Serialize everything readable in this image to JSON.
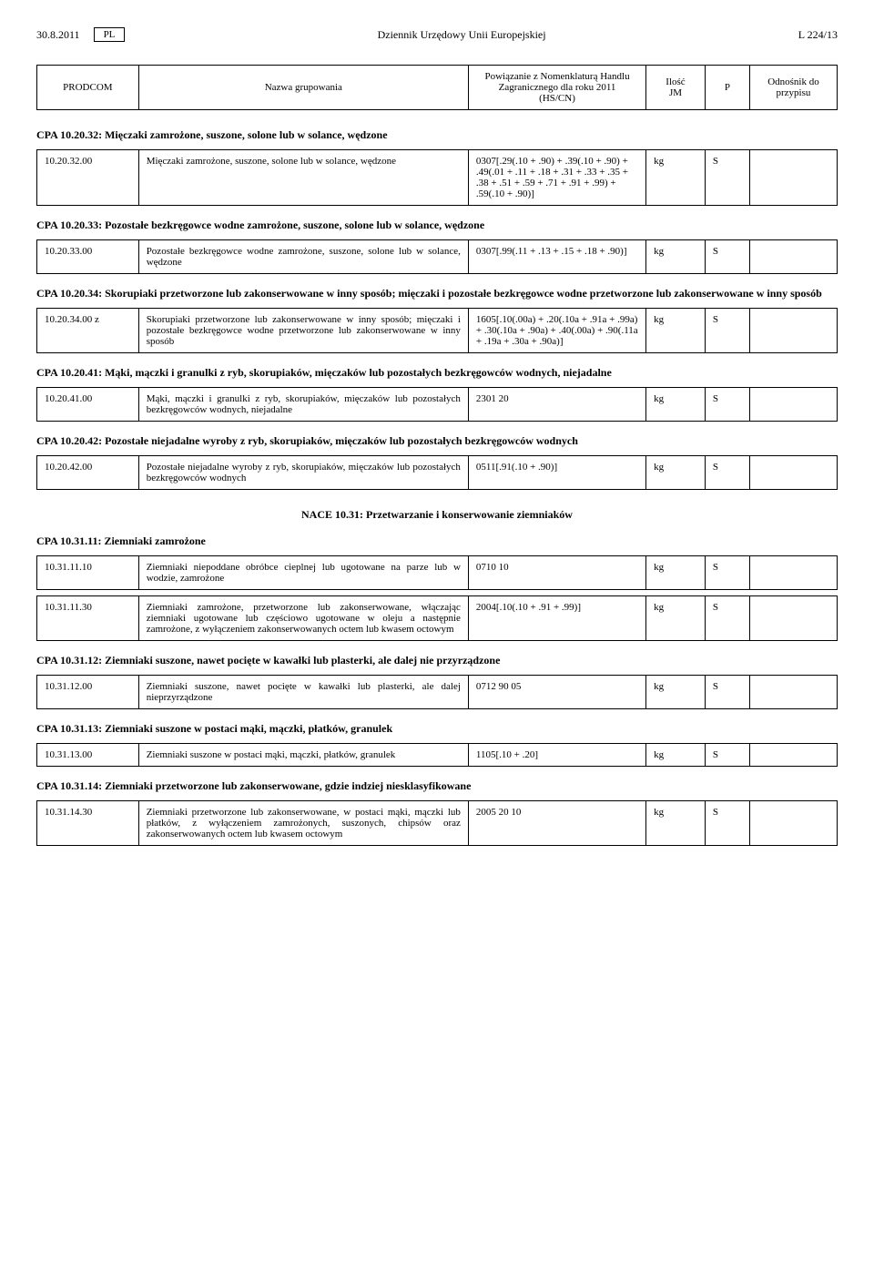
{
  "header": {
    "date": "30.8.2011",
    "lang": "PL",
    "journal": "Dziennik Urzędowy Unii Europejskiej",
    "page": "L 224/13"
  },
  "columns": {
    "prodcom": "PRODCOM",
    "name": "Nazwa grupowania",
    "hs": "Powiązanie z Nomenklaturą Handlu Zagranicznego dla roku 2011\n(HS/CN)",
    "jm": "Ilość\nJM",
    "p": "P",
    "ref": "Odnośnik do przypisu"
  },
  "sections": [
    {
      "cpa": "CPA 10.20.32: Mięczaki zamrożone, suszone, solone lub w solance, wędzone",
      "rows": [
        {
          "code": "10.20.32.00",
          "name": "Mięczaki zamrożone, suszone, solone lub w solance, wędzone",
          "hs": "0307[.29(.10 + .90) + .39(.10 + .90) + .49(.01 + .11 + .18 + .31 + .33 + .35 + .38 + .51 + .59 + .71 + .91 + .99) + .59(.10 + .90)]",
          "jm": "kg",
          "p": "S",
          "ref": ""
        }
      ]
    },
    {
      "cpa": "CPA 10.20.33: Pozostałe bezkręgowce wodne zamrożone, suszone, solone lub w solance, wędzone",
      "rows": [
        {
          "code": "10.20.33.00",
          "name": "Pozostałe bezkręgowce wodne zamrożone, suszone, solone lub w solance, wędzone",
          "hs": "0307[.99(.11 + .13 + .15 + .18 + .90)]",
          "jm": "kg",
          "p": "S",
          "ref": ""
        }
      ]
    },
    {
      "cpa": "CPA 10.20.34: Skorupiaki przetworzone lub zakonserwowane w inny sposób; mięczaki i pozostałe bezkręgowce wodne przetworzone lub zakonserwowane w inny sposób",
      "rows": [
        {
          "code": "10.20.34.00 z",
          "name": "Skorupiaki przetworzone lub zakonserwowane w inny sposób; mięczaki i pozostałe bezkręgowce wodne przetworzone lub zakonserwowane w inny sposób",
          "hs": "1605[.10(.00a) + .20(.10a + .91a + .99a) + .30(.10a + .90a) + .40(.00a) + .90(.11a + .19a + .30a + .90a)]",
          "jm": "kg",
          "p": "S",
          "ref": ""
        }
      ]
    },
    {
      "cpa": "CPA 10.20.41: Mąki, mączki i granulki z ryb, skorupiaków, mięczaków lub pozostałych bezkręgowców wodnych, niejadalne",
      "rows": [
        {
          "code": "10.20.41.00",
          "name": "Mąki, mączki i granulki z ryb, skorupiaków, mięczaków lub pozostałych bezkręgowców wodnych, niejadalne",
          "hs": "2301 20",
          "jm": "kg",
          "p": "S",
          "ref": ""
        }
      ]
    },
    {
      "cpa": "CPA 10.20.42: Pozostałe niejadalne wyroby z ryb, skorupiaków, mięczaków lub pozostałych bezkręgowców wodnych",
      "rows": [
        {
          "code": "10.20.42.00",
          "name": "Pozostałe niejadalne wyroby z ryb, skorupiaków, mięczaków lub pozostałych bezkręgowców wodnych",
          "hs": "0511[.91(.10 + .90)]",
          "jm": "kg",
          "p": "S",
          "ref": ""
        }
      ]
    }
  ],
  "nace": "NACE 10.31: Przetwarzanie i konserwowanie ziemniaków",
  "sections2": [
    {
      "cpa": "CPA 10.31.11: Ziemniaki zamrożone",
      "rows": [
        {
          "code": "10.31.11.10",
          "name": "Ziemniaki niepoddane obróbce cieplnej lub ugotowane na parze lub w wodzie, zamrożone",
          "hs": "0710 10",
          "jm": "kg",
          "p": "S",
          "ref": ""
        },
        {
          "code": "10.31.11.30",
          "name": "Ziemniaki zamrożone, przetworzone lub zakonserwowane, włączając ziemniaki ugotowane lub częściowo ugotowane w oleju a następnie zamrożone, z wyłączeniem zakonserwowanych octem lub kwasem octowym",
          "hs": "2004[.10(.10 + .91 + .99)]",
          "jm": "kg",
          "p": "S",
          "ref": ""
        }
      ]
    },
    {
      "cpa": "CPA 10.31.12: Ziemniaki suszone, nawet pocięte w kawałki lub plasterki, ale dalej nie przyrządzone",
      "rows": [
        {
          "code": "10.31.12.00",
          "name": "Ziemniaki suszone, nawet pocięte w kawałki lub plasterki, ale dalej nieprzyrządzone",
          "hs": "0712 90 05",
          "jm": "kg",
          "p": "S",
          "ref": ""
        }
      ]
    },
    {
      "cpa": "CPA 10.31.13: Ziemniaki suszone w postaci mąki, mączki, płatków, granulek",
      "rows": [
        {
          "code": "10.31.13.00",
          "name": "Ziemniaki suszone w postaci mąki, mączki, płatków, granulek",
          "hs": "1105[.10 + .20]",
          "jm": "kg",
          "p": "S",
          "ref": ""
        }
      ]
    },
    {
      "cpa": "CPA 10.31.14: Ziemniaki przetworzone lub zakonserwowane, gdzie indziej niesklasyfikowane",
      "rows": [
        {
          "code": "10.31.14.30",
          "name": "Ziemniaki przetworzone lub zakonserwowane, w postaci mąki, mączki lub płatków, z wyłączeniem zamrożonych, suszonych, chipsów oraz zakonserwowanych octem lub kwasem octowym",
          "hs": "2005 20 10",
          "jm": "kg",
          "p": "S",
          "ref": ""
        }
      ]
    }
  ]
}
